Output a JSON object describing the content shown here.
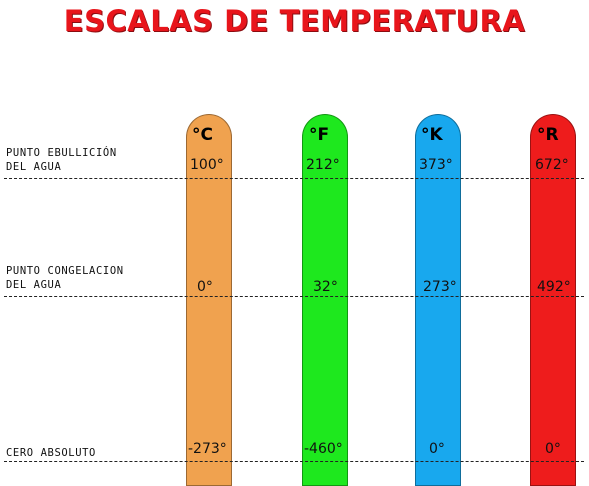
{
  "title": "ESCALAS DE TEMPERATURA",
  "labels": {
    "boiling_line1": "PUNTO EBULLICIÓN",
    "boiling_line2": "DEL AGUA",
    "freezing_line1": "PUNTO CONGELACION",
    "freezing_line2": "DEL AGUA",
    "absolute_zero": "CERO ABSOLUTO"
  },
  "scales": [
    {
      "unit": "°C",
      "color": "#f0a24f",
      "boiling": "100°",
      "freezing": "0°",
      "zero": "-273°"
    },
    {
      "unit": "°F",
      "color": "#1ee81e",
      "boiling": "212°",
      "freezing": "32°",
      "zero": "-460°"
    },
    {
      "unit": "°K",
      "color": "#18a8ee",
      "boiling": "373°",
      "freezing": "273°",
      "zero": "0°"
    },
    {
      "unit": "°R",
      "color": "#ee1c1c",
      "boiling": "672°",
      "freezing": "492°",
      "zero": "0°"
    }
  ]
}
